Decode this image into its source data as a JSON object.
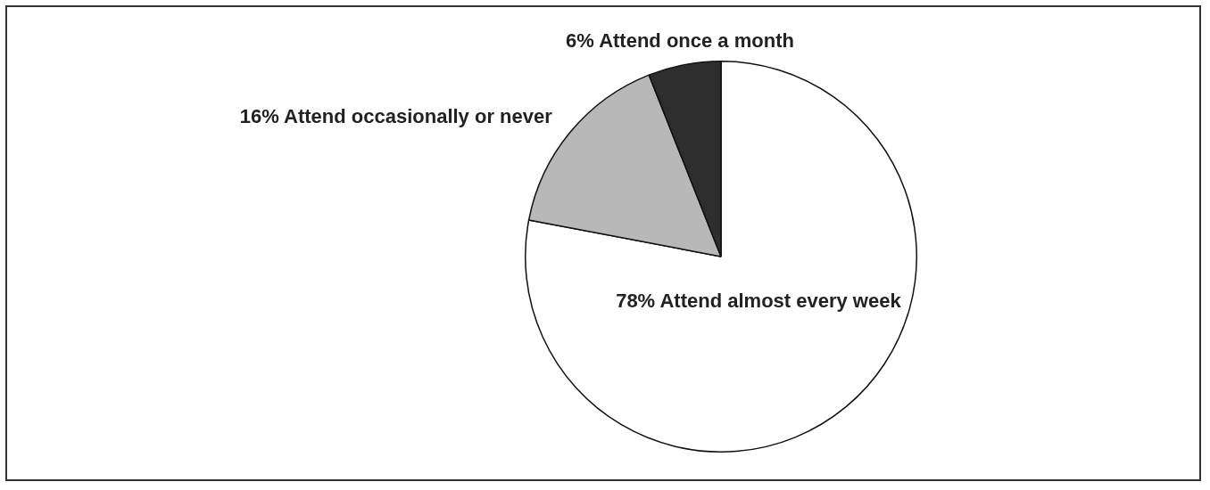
{
  "chart_data": {
    "type": "pie",
    "categories": [
      "78% Attend almost every week",
      "16% Attend occasionally or never",
      "6% Attend once a month"
    ],
    "values": [
      78,
      16,
      6
    ],
    "colors": [
      "#ffffff",
      "#b8b8b8",
      "#2e2e2e"
    ],
    "legend": false
  }
}
